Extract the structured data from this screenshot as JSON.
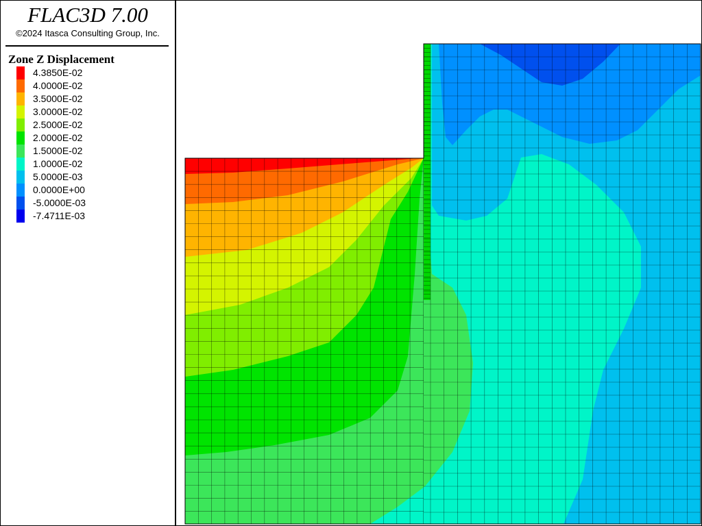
{
  "header": {
    "title": "FLAC3D 7.00",
    "copyright": "©2024 Itasca Consulting Group, Inc."
  },
  "legend": {
    "title": "Zone Z Displacement",
    "entries": [
      {
        "label": "4.3850E-02",
        "color": "#ff0000"
      },
      {
        "label": "4.0000E-02",
        "color": "#ff6a00"
      },
      {
        "label": "3.5000E-02",
        "color": "#ffb400"
      },
      {
        "label": "3.0000E-02",
        "color": "#d4f400"
      },
      {
        "label": "2.5000E-02",
        "color": "#80ee00"
      },
      {
        "label": "2.0000E-02",
        "color": "#00e400"
      },
      {
        "label": "1.5000E-02",
        "color": "#3ce65a"
      },
      {
        "label": "1.0000E-02",
        "color": "#00f5c8"
      },
      {
        "label": "5.0000E-03",
        "color": "#00c0ee"
      },
      {
        "label": "0.0000E+00",
        "color": "#0090ff"
      },
      {
        "label": "-5.0000E-03",
        "color": "#0050ee"
      },
      {
        "label": "-7.4711E-03",
        "color": "#0000ee"
      }
    ]
  }
}
